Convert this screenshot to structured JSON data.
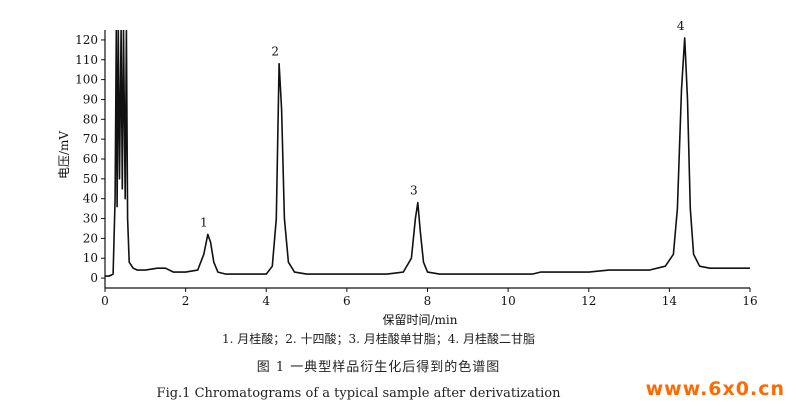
{
  "chart_data": {
    "type": "line",
    "xlabel": "保留时间/min",
    "ylabel": "电压/mV",
    "xlim": [
      0,
      16
    ],
    "ylim": [
      -5,
      125
    ],
    "x_ticks": [
      0,
      2,
      4,
      6,
      8,
      10,
      12,
      14,
      16
    ],
    "y_ticks": [
      0,
      10,
      20,
      30,
      40,
      50,
      60,
      70,
      80,
      90,
      100,
      110,
      120
    ],
    "grid": false,
    "series": [
      {
        "x": [
          0.0,
          0.1,
          0.2,
          0.25,
          0.28,
          0.3,
          0.33,
          0.36,
          0.4,
          0.43,
          0.46,
          0.5,
          0.53,
          0.56,
          0.6,
          0.7,
          0.8,
          1.0,
          1.3,
          1.5,
          1.7,
          2.0,
          2.3,
          2.45,
          2.55,
          2.62,
          2.7,
          2.8,
          3.0,
          3.5,
          4.0,
          4.15,
          4.25,
          4.32,
          4.38,
          4.45,
          4.55,
          4.7,
          5.0,
          5.5,
          6.0,
          6.5,
          7.0,
          7.4,
          7.6,
          7.7,
          7.76,
          7.82,
          7.9,
          8.0,
          8.3,
          9.0,
          10.0,
          10.6,
          10.8,
          11.5,
          12.0,
          12.5,
          13.0,
          13.5,
          13.9,
          14.1,
          14.2,
          14.3,
          14.38,
          14.45,
          14.52,
          14.6,
          14.75,
          15.0,
          15.5,
          16.0
        ],
        "y": [
          1,
          1,
          2,
          40,
          125,
          36,
          125,
          50,
          125,
          45,
          125,
          40,
          125,
          30,
          8,
          5,
          4,
          4,
          5,
          5,
          3,
          3,
          4,
          12,
          22,
          18,
          8,
          3,
          2,
          2,
          2,
          6,
          30,
          108,
          85,
          30,
          8,
          3,
          2,
          2,
          2,
          2,
          2,
          3,
          10,
          30,
          38,
          24,
          8,
          3,
          2,
          2,
          2,
          2,
          3,
          3,
          3,
          4,
          4,
          4,
          6,
          12,
          35,
          95,
          121,
          90,
          35,
          12,
          6,
          5,
          5,
          5
        ]
      }
    ],
    "peaks": [
      {
        "label": "1",
        "x": 2.55,
        "y": 22
      },
      {
        "label": "2",
        "x": 4.32,
        "y": 108
      },
      {
        "label": "3",
        "x": 7.76,
        "y": 38
      },
      {
        "label": "4",
        "x": 14.38,
        "y": 121
      }
    ]
  },
  "captions": {
    "legend": "1. 月桂酸；2. 十四酸；3. 月桂酸单甘脂；4. 月桂酸二甘脂",
    "figure_cn": "图 1    一典型样品衍生化后得到的色谱图",
    "figure_en": "Fig.1   Chromatograms of a typical sample after derivatization"
  },
  "watermark": "www.6x0.cn"
}
